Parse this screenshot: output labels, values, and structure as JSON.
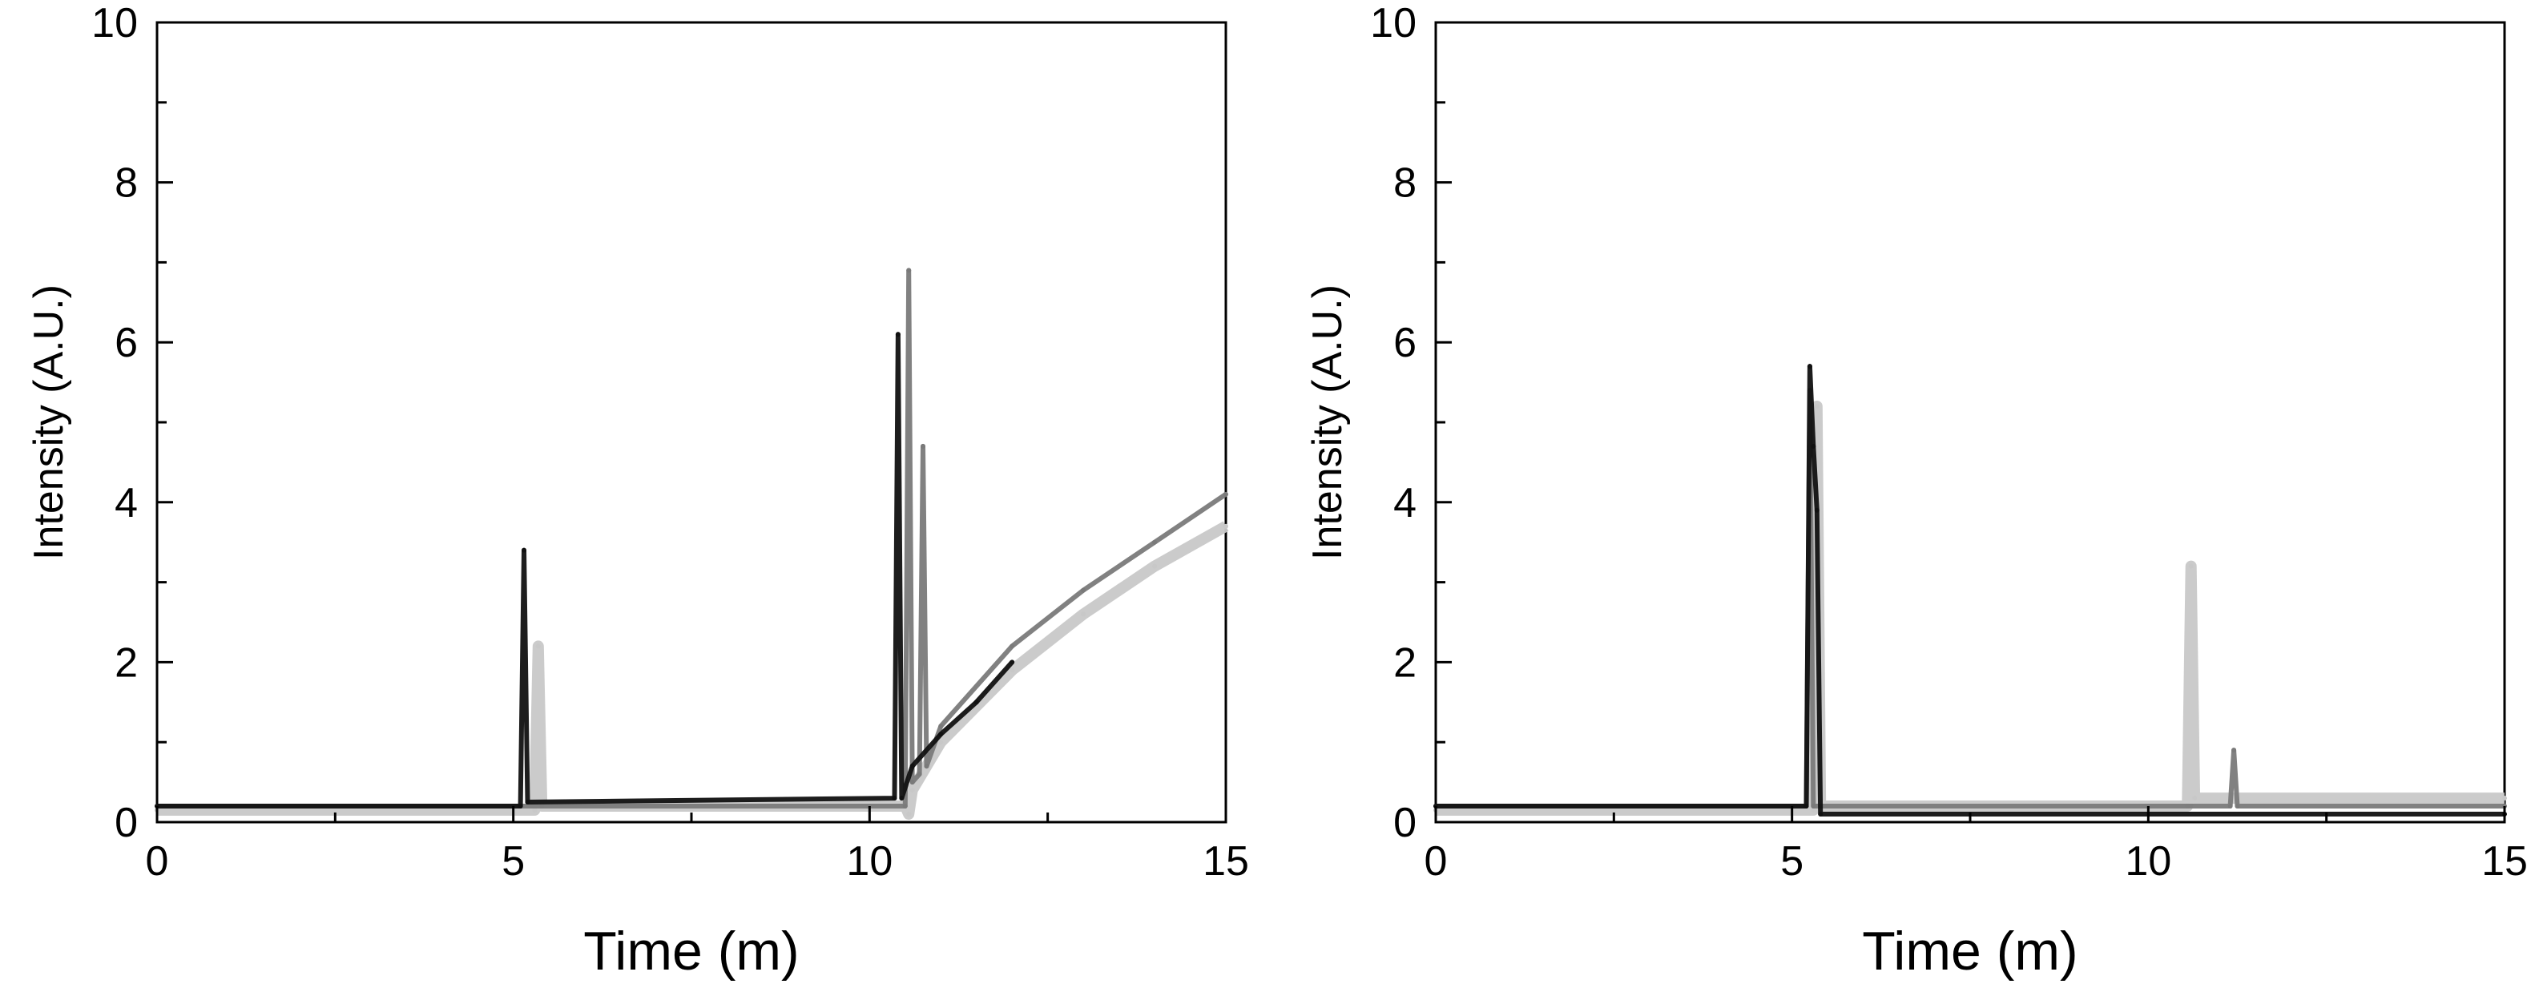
{
  "chart_data": [
    {
      "type": "line",
      "title": "",
      "xlabel": "Time (m)",
      "ylabel": "Intensity (A.U.)",
      "xlim": [
        0,
        15
      ],
      "ylim": [
        0,
        10
      ],
      "xticks": [
        "0",
        "5",
        "10",
        "15"
      ],
      "yticks": [
        "0",
        "2",
        "4",
        "6",
        "8",
        "10"
      ],
      "grid": false,
      "legend": "none",
      "colors": {
        "light": "#c8c8c8",
        "mid": "#7a7a7a",
        "dark": "#111111"
      },
      "series": [
        {
          "color": "#c8c8c8",
          "x": [
            0,
            5.3,
            5.35,
            5.4,
            10.5,
            10.55,
            10.6,
            11,
            12,
            13,
            14,
            15
          ],
          "y": [
            0.15,
            0.15,
            2.2,
            0.2,
            0.2,
            0.1,
            0.4,
            1.0,
            1.9,
            2.6,
            3.2,
            3.7
          ]
        },
        {
          "color": "#7a7a7a",
          "x": [
            0,
            10.5,
            10.55,
            10.6,
            10.7,
            10.75,
            10.8,
            11,
            12,
            13,
            14,
            15
          ],
          "y": [
            0.2,
            0.2,
            6.9,
            0.5,
            0.6,
            4.7,
            0.7,
            1.2,
            2.2,
            2.9,
            3.5,
            4.1
          ]
        },
        {
          "color": "#111111",
          "x": [
            0,
            5.1,
            5.15,
            5.2,
            10.35,
            10.4,
            10.45,
            10.6,
            11,
            11.5,
            12
          ],
          "y": [
            0.2,
            0.2,
            3.4,
            0.25,
            0.3,
            6.1,
            0.3,
            0.7,
            1.1,
            1.5,
            2.0
          ]
        }
      ]
    },
    {
      "type": "line",
      "title": "",
      "xlabel": "Time (m)",
      "ylabel": "Intensity (A.U.)",
      "xlim": [
        0,
        15
      ],
      "ylim": [
        0,
        10
      ],
      "xticks": [
        "0",
        "5",
        "10",
        "15"
      ],
      "yticks": [
        "0",
        "2",
        "4",
        "6",
        "8",
        "10"
      ],
      "grid": false,
      "legend": "none",
      "colors": {
        "light": "#c8c8c8",
        "mid": "#7a7a7a",
        "dark": "#111111"
      },
      "series": [
        {
          "color": "#c8c8c8",
          "x": [
            0,
            5.3,
            5.35,
            5.4,
            10.55,
            10.6,
            10.65,
            15
          ],
          "y": [
            0.15,
            0.15,
            5.2,
            0.2,
            0.2,
            3.2,
            0.3,
            0.3
          ]
        },
        {
          "color": "#7a7a7a",
          "x": [
            0,
            5.2,
            5.25,
            5.3,
            11.15,
            11.2,
            11.25,
            15
          ],
          "y": [
            0.2,
            0.2,
            5.4,
            0.2,
            0.2,
            0.9,
            0.2,
            0.2
          ]
        },
        {
          "color": "#111111",
          "x": [
            0,
            5.2,
            5.25,
            5.3,
            5.35,
            5.4,
            15
          ],
          "y": [
            0.2,
            0.2,
            5.7,
            4.7,
            3.9,
            0.1,
            0.1
          ]
        }
      ]
    }
  ]
}
